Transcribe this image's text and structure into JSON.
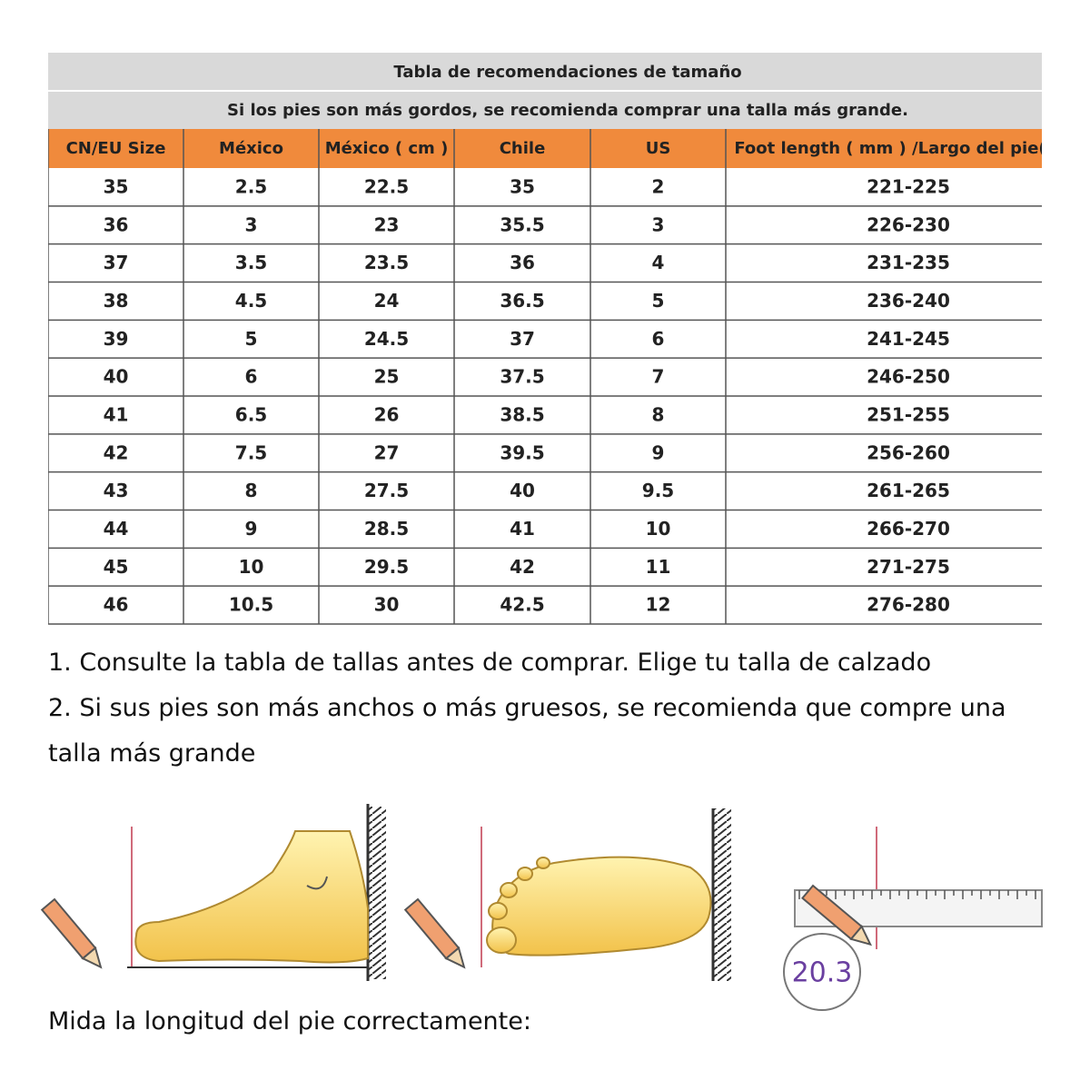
{
  "table": {
    "title": "Tabla de recomendaciones de tamaño",
    "subtitle": "Si los pies son más gordos, se recomienda comprar una talla más grande.",
    "header": [
      "CN/EU Size",
      "México",
      "México ( cm )",
      "Chile",
      "US",
      "Foot length ( mm ) /Largo del pie("
    ],
    "rows": [
      [
        "35",
        "2.5",
        "22.5",
        "35",
        "2",
        "221-225"
      ],
      [
        "36",
        "3",
        "23",
        "35.5",
        "3",
        "226-230"
      ],
      [
        "37",
        "3.5",
        "23.5",
        "36",
        "4",
        "231-235"
      ],
      [
        "38",
        "4.5",
        "24",
        "36.5",
        "5",
        "236-240"
      ],
      [
        "39",
        "5",
        "24.5",
        "37",
        "6",
        "241-245"
      ],
      [
        "40",
        "6",
        "25",
        "37.5",
        "7",
        "246-250"
      ],
      [
        "41",
        "6.5",
        "26",
        "38.5",
        "8",
        "251-255"
      ],
      [
        "42",
        "7.5",
        "27",
        "39.5",
        "9",
        "256-260"
      ],
      [
        "43",
        "8",
        "27.5",
        "40",
        "9.5",
        "261-265"
      ],
      [
        "44",
        "9",
        "28.5",
        "41",
        "10",
        "266-270"
      ],
      [
        "45",
        "10",
        "29.5",
        "42",
        "11",
        "271-275"
      ],
      [
        "46",
        "10.5",
        "30",
        "42.5",
        "12",
        "276-280"
      ]
    ]
  },
  "notes": [
    "1. Consulte la tabla de tallas antes de comprar. Elige tu talla de calzado",
    "2. Si sus pies son más anchos o más gruesos, se recomienda que compre una",
    "talla más grande"
  ],
  "illustration": {
    "measure_label": "20.3"
  },
  "footer": "Mida la longitud del pie correctamente:"
}
